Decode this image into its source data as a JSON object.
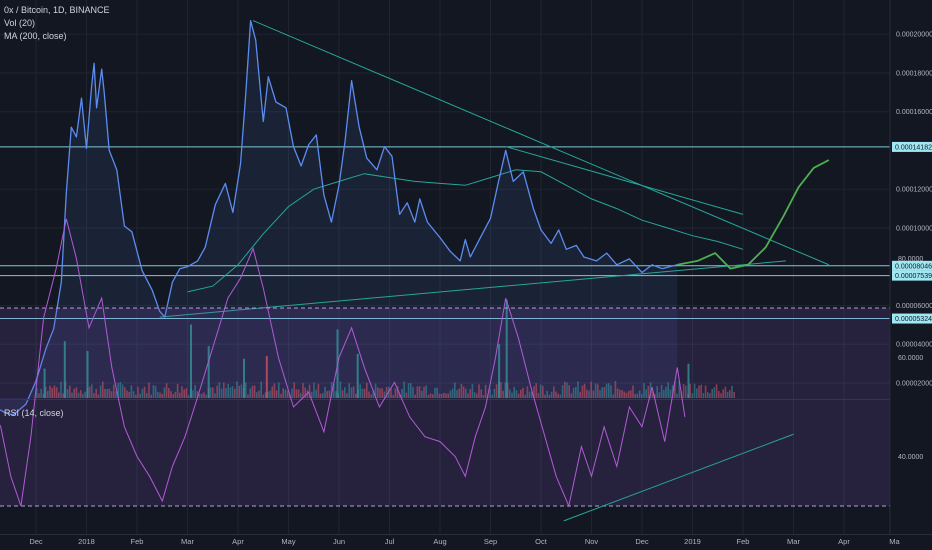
{
  "header": {
    "symbol": "0x / Bitcoin, 1D, BINANCE",
    "vol_label": "Vol (20)",
    "ma_label": "MA (200, close)",
    "rsi_label": "RSI (14, close)"
  },
  "chart_data": [
    {
      "type": "line",
      "title": "0x / Bitcoin, 1D, BINANCE",
      "x_unit": "month index (0 = Dec 2017 start)",
      "ylim": [
        1e-06,
        0.000216
      ],
      "price_ticks": [
        "0.00020000",
        "0.00018000",
        "0.00016000",
        "0.00012000",
        "0.00010000",
        "0.00006000",
        "0.00004000",
        "0.00002000"
      ],
      "price_badges": [
        {
          "label": "0.00014182",
          "value": 0.00014182
        },
        {
          "label": "0.00008046",
          "value": 8.046e-05
        },
        {
          "label": "0.00007539",
          "value": 7.539e-05
        },
        {
          "label": "0.00005324",
          "value": 5.324e-05
        }
      ],
      "horizontal_lines": [
        0.00014182,
        8.046e-05,
        7.539e-05,
        5.324e-05
      ],
      "series": [
        {
          "name": "price",
          "color": "#5b8cf0",
          "points": [
            [
              -1.05,
              9.4e-06
            ],
            [
              -0.85,
              8e-06
            ],
            [
              -0.6,
              4.5e-06
            ],
            [
              -0.45,
              3.5e-06
            ],
            [
              -0.2,
              9e-06
            ],
            [
              0.0,
              2.1e-05
            ],
            [
              0.2,
              3.8e-05
            ],
            [
              0.35,
              4.8e-05
            ],
            [
              0.5,
              7.2e-05
            ],
            [
              0.6,
              0.000118
            ],
            [
              0.7,
              0.000152
            ],
            [
              0.8,
              0.000147
            ],
            [
              0.9,
              0.000167
            ],
            [
              1.0,
              0.000141
            ],
            [
              1.1,
              0.000173
            ],
            [
              1.15,
              0.000185
            ],
            [
              1.2,
              0.000162
            ],
            [
              1.3,
              0.000182
            ],
            [
              1.35,
              0.00017
            ],
            [
              1.45,
              0.00014
            ],
            [
              1.6,
              0.00013
            ],
            [
              1.75,
              0.000101
            ],
            [
              1.9,
              9.8e-05
            ],
            [
              2.1,
              7.8e-05
            ],
            [
              2.3,
              6.8e-05
            ],
            [
              2.45,
              5.7e-05
            ],
            [
              2.55,
              5.4e-05
            ],
            [
              2.7,
              7.2e-05
            ],
            [
              2.85,
              7.9e-05
            ],
            [
              3.0,
              8e-05
            ],
            [
              3.2,
              8.3e-05
            ],
            [
              3.35,
              9e-05
            ],
            [
              3.55,
              0.000112
            ],
            [
              3.75,
              0.000123
            ],
            [
              3.9,
              0.000108
            ],
            [
              4.05,
              0.000133
            ],
            [
              4.15,
              0.000168
            ],
            [
              4.25,
              0.000207
            ],
            [
              4.35,
              0.000197
            ],
            [
              4.5,
              0.000155
            ],
            [
              4.6,
              0.000178
            ],
            [
              4.75,
              0.000165
            ],
            [
              4.95,
              0.000162
            ],
            [
              5.1,
              0.000142
            ],
            [
              5.25,
              0.000132
            ],
            [
              5.4,
              0.000143
            ],
            [
              5.55,
              0.000148
            ],
            [
              5.7,
              0.000117
            ],
            [
              5.85,
              0.000103
            ],
            [
              6.0,
              0.000122
            ],
            [
              6.12,
              0.000145
            ],
            [
              6.25,
              0.000176
            ],
            [
              6.4,
              0.000152
            ],
            [
              6.55,
              0.000136
            ],
            [
              6.75,
              0.00013
            ],
            [
              6.9,
              0.000142
            ],
            [
              7.05,
              0.000137
            ],
            [
              7.2,
              0.000107
            ],
            [
              7.35,
              0.000113
            ],
            [
              7.5,
              0.000103
            ],
            [
              7.6,
              0.000115
            ],
            [
              7.75,
              0.000103
            ],
            [
              8.0,
              9.5e-05
            ],
            [
              8.2,
              8.8e-05
            ],
            [
              8.4,
              8.3e-05
            ],
            [
              8.5,
              9.4e-05
            ],
            [
              8.6,
              8.5e-05
            ],
            [
              8.8,
              9.5e-05
            ],
            [
              9.0,
              0.000105
            ],
            [
              9.15,
              0.000123
            ],
            [
              9.3,
              0.00014
            ],
            [
              9.45,
              0.000124
            ],
            [
              9.65,
              0.000129
            ],
            [
              9.85,
              0.00011
            ],
            [
              10.0,
              9.9e-05
            ],
            [
              10.2,
              9.2e-05
            ],
            [
              10.35,
              9.9e-05
            ],
            [
              10.5,
              8.9e-05
            ],
            [
              10.7,
              9.1e-05
            ],
            [
              10.85,
              8.5e-05
            ],
            [
              11.1,
              8.3e-05
            ],
            [
              11.3,
              8.7e-05
            ],
            [
              11.5,
              8.1e-05
            ],
            [
              11.75,
              8.4e-05
            ],
            [
              12.0,
              7.7e-05
            ],
            [
              12.2,
              8.1e-05
            ],
            [
              12.4,
              7.9e-05
            ],
            [
              12.7,
              8.1e-05
            ]
          ]
        },
        {
          "name": "ma200",
          "color": "#26a69a",
          "points": [
            [
              3.0,
              6.7e-05
            ],
            [
              3.5,
              7e-05
            ],
            [
              4.0,
              8.1e-05
            ],
            [
              4.5,
              9.7e-05
            ],
            [
              5.0,
              0.000111
            ],
            [
              5.5,
              0.00012
            ],
            [
              6.0,
              0.000124
            ],
            [
              6.5,
              0.000128
            ],
            [
              7.0,
              0.000126
            ],
            [
              7.5,
              0.000124
            ],
            [
              8.0,
              0.000123
            ],
            [
              8.5,
              0.000122
            ],
            [
              9.0,
              0.000126
            ],
            [
              9.5,
              0.00013
            ],
            [
              10.0,
              0.000129
            ],
            [
              10.5,
              0.000122
            ],
            [
              11.0,
              0.000115
            ],
            [
              11.5,
              0.00011
            ],
            [
              12.0,
              0.000104
            ],
            [
              12.5,
              0.0001
            ],
            [
              13.0,
              9.6e-05
            ],
            [
              13.5,
              9.3e-05
            ],
            [
              14.0,
              8.9e-05
            ]
          ]
        },
        {
          "name": "projection",
          "color": "#4caf50",
          "points": [
            [
              12.7,
              8.1e-05
            ],
            [
              13.1,
              8.3e-05
            ],
            [
              13.45,
              8.7e-05
            ],
            [
              13.75,
              7.9e-05
            ],
            [
              14.1,
              8.1e-05
            ],
            [
              14.45,
              9e-05
            ],
            [
              14.8,
              0.000106
            ],
            [
              15.1,
              0.000121
            ],
            [
              15.4,
              0.000131
            ],
            [
              15.7,
              0.000135
            ]
          ]
        }
      ],
      "trendlines": [
        {
          "color": "#26a69a",
          "from": [
            4.3,
            0.000207
          ],
          "to": [
            15.7,
            8.1e-05
          ]
        },
        {
          "color": "#26a69a",
          "from": [
            2.45,
            5.4e-05
          ],
          "to": [
            14.85,
            8.3e-05
          ]
        },
        {
          "color": "#26a69a",
          "from": [
            9.3,
            0.000142
          ],
          "to": [
            14.0,
            0.000107
          ]
        }
      ]
    },
    {
      "type": "bar",
      "title": "Vol (20)",
      "ylim": [
        0,
        1
      ],
      "spikes": [
        {
          "x": 0.15,
          "value": 0.3,
          "color": "#26a69a"
        },
        {
          "x": 0.55,
          "value": 0.58,
          "color": "#26a69a"
        },
        {
          "x": 1.0,
          "value": 0.48,
          "color": "#26a69a"
        },
        {
          "x": 3.05,
          "value": 0.75,
          "color": "#26a69a"
        },
        {
          "x": 3.4,
          "value": 0.53,
          "color": "#26a69a"
        },
        {
          "x": 4.1,
          "value": 0.4,
          "color": "#26a69a"
        },
        {
          "x": 4.55,
          "value": 0.43,
          "color": "#ef5350"
        },
        {
          "x": 5.95,
          "value": 0.7,
          "color": "#26a69a"
        },
        {
          "x": 6.35,
          "value": 0.45,
          "color": "#26a69a"
        },
        {
          "x": 9.3,
          "value": 1.0,
          "color": "#26a69a"
        },
        {
          "x": 9.15,
          "value": 0.55,
          "color": "#26a69a"
        },
        {
          "x": 12.9,
          "value": 0.35,
          "color": "#26a69a"
        }
      ]
    },
    {
      "type": "line",
      "title": "RSI (14, close)",
      "ylim": [
        22,
        100
      ],
      "ticks": [
        "80.0000",
        "60.0000",
        "40.0000"
      ],
      "bands": [
        70,
        30
      ],
      "series": [
        {
          "name": "rsi",
          "color": "#b25ad6",
          "points": [
            [
              -1.0,
              52
            ],
            [
              -0.7,
              46
            ],
            [
              -0.5,
              36
            ],
            [
              -0.3,
              30
            ],
            [
              -0.1,
              44
            ],
            [
              0.15,
              68
            ],
            [
              0.4,
              78
            ],
            [
              0.6,
              88
            ],
            [
              0.8,
              80
            ],
            [
              1.05,
              66
            ],
            [
              1.3,
              72
            ],
            [
              1.5,
              58
            ],
            [
              1.75,
              46
            ],
            [
              2.0,
              40
            ],
            [
              2.25,
              36
            ],
            [
              2.5,
              31
            ],
            [
              2.7,
              38
            ],
            [
              2.95,
              44
            ],
            [
              3.2,
              52
            ],
            [
              3.5,
              62
            ],
            [
              3.8,
              72
            ],
            [
              4.05,
              76
            ],
            [
              4.3,
              82
            ],
            [
              4.5,
              74
            ],
            [
              4.8,
              60
            ],
            [
              5.1,
              50
            ],
            [
              5.4,
              53
            ],
            [
              5.7,
              45
            ],
            [
              6.0,
              60
            ],
            [
              6.25,
              66
            ],
            [
              6.5,
              58
            ],
            [
              6.8,
              50
            ],
            [
              7.1,
              55
            ],
            [
              7.4,
              48
            ],
            [
              7.7,
              44
            ],
            [
              8.0,
              43
            ],
            [
              8.3,
              40
            ],
            [
              8.5,
              36
            ],
            [
              8.7,
              44
            ],
            [
              8.9,
              50
            ],
            [
              9.1,
              60
            ],
            [
              9.3,
              72
            ],
            [
              9.55,
              64
            ],
            [
              9.8,
              54
            ],
            [
              10.05,
              45
            ],
            [
              10.3,
              36
            ],
            [
              10.55,
              30
            ],
            [
              10.8,
              42
            ],
            [
              11.0,
              36
            ],
            [
              11.25,
              46
            ],
            [
              11.5,
              38
            ],
            [
              11.75,
              50
            ],
            [
              12.0,
              46
            ],
            [
              12.2,
              54
            ],
            [
              12.45,
              43
            ],
            [
              12.7,
              58
            ],
            [
              12.85,
              48
            ]
          ]
        }
      ],
      "trendlines": [
        {
          "color": "#26a69a",
          "from": [
            10.45,
            27
          ],
          "to": [
            15.0,
            44.5
          ]
        }
      ]
    }
  ],
  "x_axis": {
    "labels": [
      {
        "text": "Dec",
        "m": 0.0
      },
      {
        "text": "2018",
        "m": 1.0
      },
      {
        "text": "Feb",
        "m": 2.0
      },
      {
        "text": "Mar",
        "m": 3.0
      },
      {
        "text": "Apr",
        "m": 4.0
      },
      {
        "text": "May",
        "m": 5.0
      },
      {
        "text": "Jun",
        "m": 6.0
      },
      {
        "text": "Jul",
        "m": 7.0
      },
      {
        "text": "Aug",
        "m": 8.0
      },
      {
        "text": "Sep",
        "m": 9.0
      },
      {
        "text": "Oct",
        "m": 10.0
      },
      {
        "text": "Nov",
        "m": 11.0
      },
      {
        "text": "Dec",
        "m": 12.0
      },
      {
        "text": "2019",
        "m": 13.0
      },
      {
        "text": "Feb",
        "m": 14.0
      },
      {
        "text": "Mar",
        "m": 15.0
      },
      {
        "text": "Apr",
        "m": 16.0
      },
      {
        "text": "Ma",
        "m": 17.0
      }
    ]
  },
  "colors": {
    "background": "#131722",
    "grid": "#1f2430",
    "price": "#5b8cf0",
    "ma": "#26a69a",
    "projection": "#4caf50",
    "rsi": "#b25ad6",
    "hline": "#7fc8d8",
    "badge": "#9fe7f2"
  }
}
